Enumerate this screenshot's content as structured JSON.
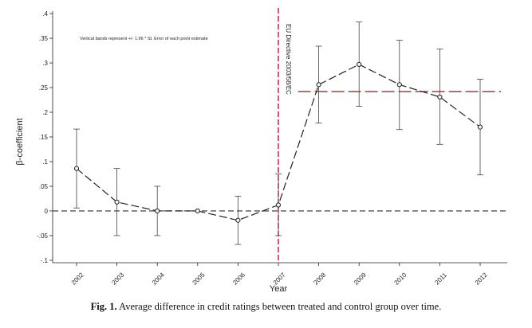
{
  "chart_data": {
    "type": "line",
    "x_label": "Year",
    "y_label": "β-coefficient",
    "categories": [
      "2002",
      "2003",
      "2004",
      "2005",
      "2006",
      "2007",
      "2008",
      "2009",
      "2010",
      "2011",
      "2012"
    ],
    "series": [
      {
        "name": "β-coefficient",
        "values": [
          0.086,
          0.018,
          0.0,
          0.0,
          -0.019,
          0.012,
          0.256,
          0.297,
          0.256,
          0.231,
          0.17
        ],
        "ci_low": [
          0.006,
          -0.05,
          -0.05,
          null,
          -0.068,
          -0.05,
          0.178,
          0.212,
          0.165,
          0.135,
          0.073
        ],
        "ci_high": [
          0.166,
          0.086,
          0.05,
          null,
          0.03,
          0.075,
          0.334,
          0.383,
          0.346,
          0.328,
          0.267
        ]
      }
    ],
    "y_ticks": [
      -0.1,
      -0.05,
      0,
      0.05,
      0.1,
      0.15,
      0.2,
      0.25,
      0.3,
      0.35,
      0.4
    ],
    "y_tick_labels": [
      "-.1",
      "-.05",
      "0",
      ".05",
      ".1",
      ".15",
      ".2",
      ".25",
      ".3",
      ".35",
      ".4"
    ],
    "ylim": [
      -0.105,
      0.405
    ],
    "post_mean": 0.242,
    "post_mean_range": [
      "2008",
      "2012"
    ],
    "vline_year": "2007",
    "vline_label": "EU Directive 2003/58/EC",
    "note": "Vertical bands represent +/- 1.96 * St. Error of each point estimate",
    "colors": {
      "line": "#222222",
      "marker": "#222222",
      "vline": "#c8102e",
      "post_mean": "#8b1a1a",
      "zero": "#555555"
    }
  },
  "caption": {
    "label": "Fig. 1.",
    "text": "Average difference in credit ratings between treated and control group over time."
  }
}
